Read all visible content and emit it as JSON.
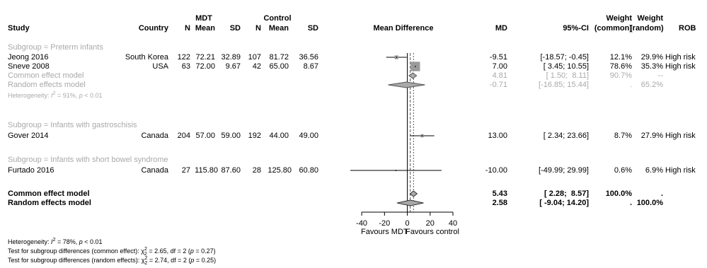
{
  "headers": {
    "study": "Study",
    "country": "Country",
    "n1": "N",
    "mdt_group": "MDT",
    "mdt_mean": "Mean",
    "sd1": "SD",
    "n2": "N",
    "control_group": "Control",
    "control_mean": "Mean",
    "sd2": "SD",
    "mean_difference": "Mean Difference",
    "md": "MD",
    "ci": "95%-CI",
    "weight_common_1": "Weight",
    "weight_common_2": "(common)",
    "weight_random_1": "Weight",
    "weight_random_2": "(random)",
    "rob": "ROB"
  },
  "subgroups": [
    {
      "label": "Subgroup = Preterm infants",
      "studies": [
        {
          "study": "Jeong 2016",
          "country": "South Korea",
          "n1": "122",
          "mean1": "72.21",
          "sd1": "32.89",
          "n2": "107",
          "mean2": "81.72",
          "sd2": "36.56",
          "md_text": "-9.51",
          "ci_text": "[-18.57; -0.45]",
          "w_common": "12.1%",
          "w_random": "29.9%",
          "rob": "High risk",
          "md": -9.51,
          "lower": -18.57,
          "upper": -0.45,
          "weight": 12.1
        },
        {
          "study": "Sneve 2008",
          "country": "USA",
          "n1": "63",
          "mean1": "72.00",
          "sd1": "9.67",
          "n2": "42",
          "mean2": "65.00",
          "sd2": "8.67",
          "md_text": "7.00",
          "ci_text": "[ 3.45; 10.55]",
          "w_common": "78.6%",
          "w_random": "35.3%",
          "rob": "High risk",
          "md": 7.0,
          "lower": 3.45,
          "upper": 10.55,
          "weight": 78.6
        }
      ],
      "common": {
        "label": "Common effect model",
        "md_text": "4.81",
        "ci_text": "[ 1.50;  8.11]",
        "w_common": "90.7%",
        "w_random": "--",
        "md": 4.81,
        "lower": 1.5,
        "upper": 8.11
      },
      "random": {
        "label": "Random effects model",
        "md_text": "-0.71",
        "ci_text": "[-16.85; 15.44]",
        "w_common": ".",
        "w_random": "65.2%",
        "md": -0.71,
        "lower": -16.85,
        "upper": 15.44
      },
      "heterogeneity": {
        "prefix": "Heterogeneity: ",
        "i2_symbol": "I",
        "i2_sup": "2",
        "i2_value": " = 91%, ",
        "p_symbol": "p",
        "p_value": " < 0.01"
      }
    },
    {
      "label": "Subgroup = Infants with gastroschisis",
      "studies": [
        {
          "study": "Gover 2014",
          "country": "Canada",
          "n1": "204",
          "mean1": "57.00",
          "sd1": "59.00",
          "n2": "192",
          "mean2": "44.00",
          "sd2": "49.00",
          "md_text": "13.00",
          "ci_text": "[ 2.34; 23.66]",
          "w_common": "8.7%",
          "w_random": "27.9%",
          "rob": "High risk",
          "md": 13.0,
          "lower": 2.34,
          "upper": 23.66,
          "weight": 8.7
        }
      ]
    },
    {
      "label": "Subgroup = Infants with short bowel syndrome",
      "studies": [
        {
          "study": "Furtado 2016",
          "country": "Canada",
          "n1": "27",
          "mean1": "115.80",
          "sd1": "87.60",
          "n2": "28",
          "mean2": "125.80",
          "sd2": "60.80",
          "md_text": "-10.00",
          "ci_text": "[-49.99; 29.99]",
          "w_common": "0.6%",
          "w_random": "6.9%",
          "rob": "High risk",
          "md": -10.0,
          "lower": -49.99,
          "upper": 29.99,
          "weight": 0.6
        }
      ]
    }
  ],
  "overall": {
    "common": {
      "label": "Common effect model",
      "md_text": "5.43",
      "ci_text": "[ 2.28;  8.57]",
      "w_common": "100.0%",
      "w_random": ".",
      "md": 5.43,
      "lower": 2.28,
      "upper": 8.57
    },
    "random": {
      "label": "Random effects model",
      "md_text": "2.58",
      "ci_text": "[ -9.04; 14.20]",
      "w_common": ".",
      "w_random": "100.0%",
      "md": 2.58,
      "lower": -9.04,
      "upper": 14.2
    }
  },
  "footer": {
    "het_prefix": "Heterogeneity: ",
    "het_i2_symbol": "I",
    "het_i2_sup": "2",
    "het_i2_value": " = 78%, ",
    "het_p_symbol": "p",
    "het_p_value": " < 0.01",
    "test_common_prefix": "Test for subgroup differences (common effect): ",
    "test_common_chi": "χ",
    "test_common_chi_sup": "2",
    "test_common_chi_sub": "2",
    "test_common_rest": " = 2.65, df = 2 (",
    "test_common_p": "p",
    "test_common_pval": " = 0.27)",
    "test_random_prefix": "Test for subgroup differences (random effects): ",
    "test_random_chi": "χ",
    "test_random_chi_sup": "2",
    "test_random_chi_sub": "2",
    "test_random_rest": " = 2.74, df = 2 (",
    "test_random_p": "p",
    "test_random_pval": " = 0.25)"
  },
  "chart_data": {
    "type": "forest",
    "xlim": [
      -50,
      40
    ],
    "ticks": [
      -40,
      -20,
      0,
      20,
      40
    ],
    "tick_labels": [
      "-40",
      "-20",
      "0",
      "20",
      "40"
    ],
    "null_value": 0,
    "common_line": 5.43,
    "random_line": 2.58,
    "xlabel_left": "Favours MDT",
    "xlabel_right": "Favours control",
    "square_color": "#9a9a9a",
    "subgroup_color": "#a9a9a9"
  }
}
